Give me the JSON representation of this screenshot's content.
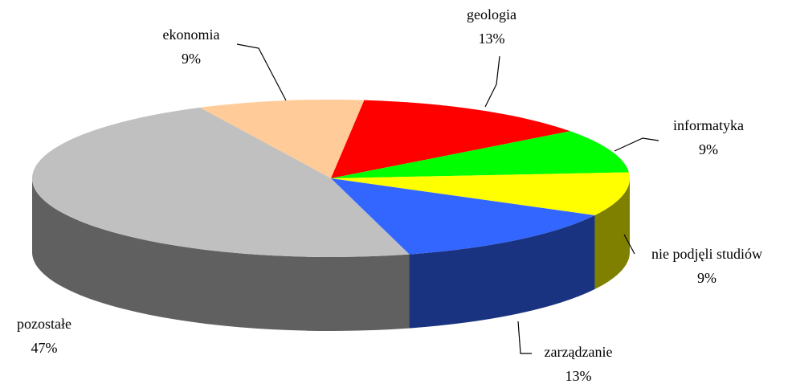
{
  "chart_data": {
    "type": "pie",
    "categories": [
      "ekonomia",
      "geologia",
      "informatyka",
      "nie podjęli studiów",
      "zarządzanie",
      "pozostałe"
    ],
    "values": [
      9,
      13,
      9,
      9,
      13,
      47
    ],
    "value_labels": [
      "9%",
      "13%",
      "9%",
      "9%",
      "13%",
      "47%"
    ],
    "colors": [
      "#ffcc99",
      "#ff0000",
      "#00ff00",
      "#ffff00",
      "#3366ff",
      "#c0c0c0"
    ],
    "three_d": true
  }
}
